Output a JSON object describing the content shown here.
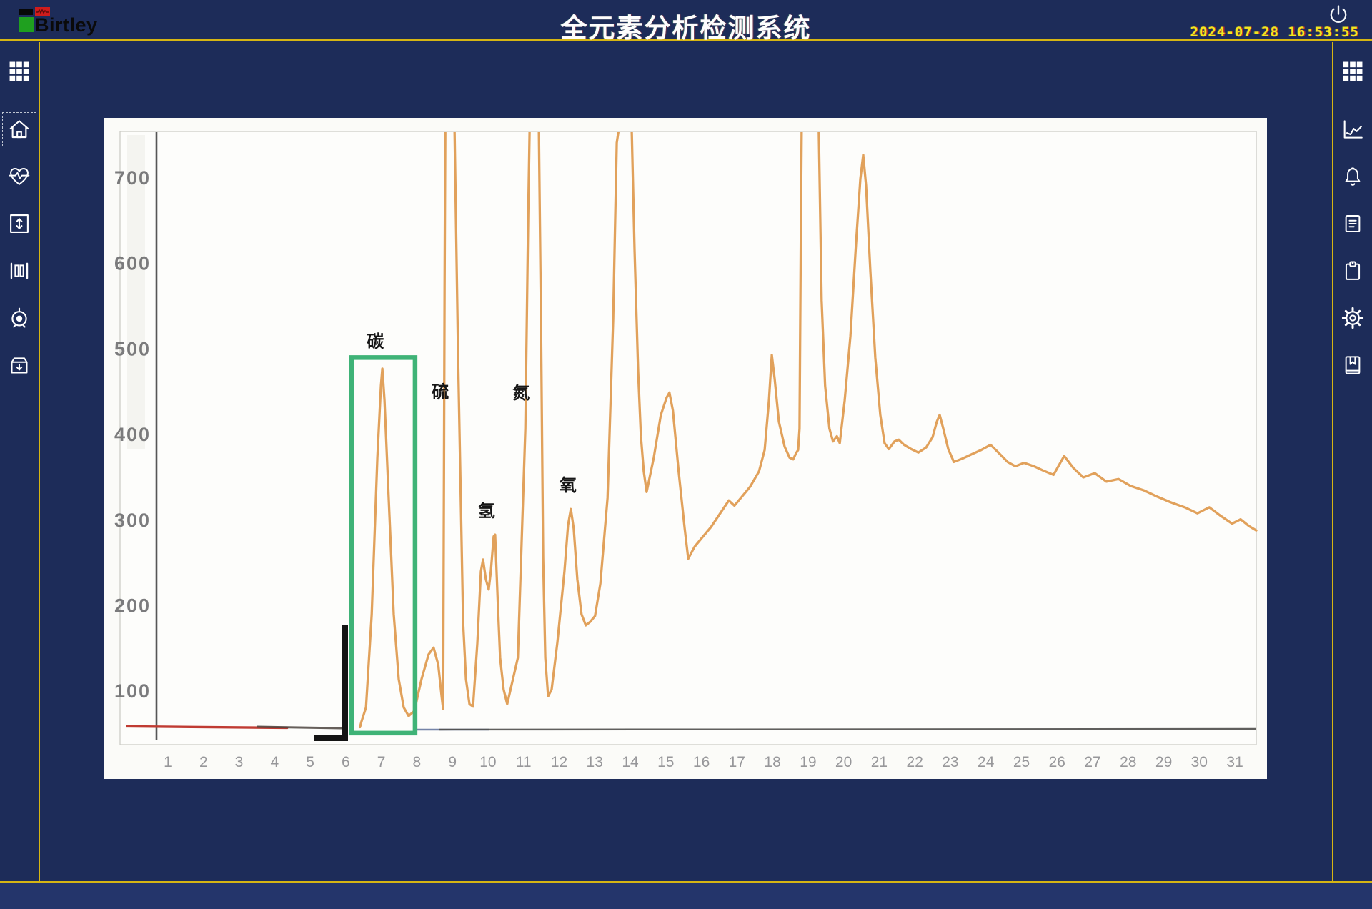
{
  "header": {
    "brand": "Birtley",
    "title": "全元素分析检测系统",
    "datetime": "2024-07-28  16:53:55"
  },
  "sidebar_left": {
    "items": [
      {
        "icon": "apps-grid-icon",
        "selected": false
      },
      {
        "icon": "home-icon",
        "selected": true
      },
      {
        "icon": "heartbeat-icon",
        "selected": false
      },
      {
        "icon": "vertical-range-icon",
        "selected": false
      },
      {
        "icon": "columns-icon",
        "selected": false
      },
      {
        "icon": "target-icon",
        "selected": false
      },
      {
        "icon": "archive-in-icon",
        "selected": false
      }
    ]
  },
  "sidebar_right": {
    "items": [
      {
        "icon": "apps-grid-icon"
      },
      {
        "icon": "trend-chart-icon"
      },
      {
        "icon": "bell-icon"
      },
      {
        "icon": "report-document-icon"
      },
      {
        "icon": "clipboard-icon"
      },
      {
        "icon": "gear-icon"
      },
      {
        "icon": "logbook-icon"
      }
    ]
  },
  "chart_data": {
    "type": "line",
    "title": "",
    "xlabel": "",
    "ylabel": "",
    "grid": false,
    "legend": false,
    "x_ticks": [
      1,
      2,
      3,
      4,
      5,
      6,
      7,
      8,
      9,
      10,
      11,
      12,
      13,
      14,
      15,
      16,
      17,
      18,
      19,
      20,
      21,
      22,
      23,
      24,
      25,
      26,
      27,
      28,
      29,
      30,
      31
    ],
    "y_ticks": [
      700,
      600,
      500,
      400,
      300,
      200,
      100
    ],
    "ylim": [
      0,
      760
    ],
    "series_color": "#e1a15b",
    "baseline": {
      "color": "#c03b32",
      "from_x": -0.15,
      "to_x": 4.35,
      "value": 58
    },
    "highlight_box": {
      "color": "#3fb377",
      "x_from": 6.16,
      "x_to": 7.95,
      "v_top": 490,
      "v_bottom": 51
    },
    "peak_labels": [
      {
        "element": "carbon",
        "label": "碳",
        "label_pos": [
          6.83,
          502
        ],
        "peak_x": 7.0,
        "peak_value": 478
      },
      {
        "element": "sulfur",
        "label": "硫",
        "label_pos": [
          8.66,
          443
        ],
        "peak_x": 8.9,
        "peak_value": 760
      },
      {
        "element": "hydrogen",
        "label": "氢",
        "label_pos": [
          9.96,
          304
        ],
        "peak_x": 10.2,
        "peak_value": 283
      },
      {
        "element": "nitrogen",
        "label": "氮",
        "label_pos": [
          10.93,
          442
        ],
        "peak_x": 11.3,
        "peak_value": 760
      },
      {
        "element": "oxygen",
        "label": "氧",
        "label_pos": [
          12.25,
          334
        ],
        "peak_x": 12.3,
        "peak_value": 313
      }
    ],
    "trace": [
      [
        6.4,
        58
      ],
      [
        6.44,
        64
      ],
      [
        6.57,
        81
      ],
      [
        6.73,
        190
      ],
      [
        6.89,
        373
      ],
      [
        6.99,
        457
      ],
      [
        7.03,
        477
      ],
      [
        7.09,
        440
      ],
      [
        7.21,
        323
      ],
      [
        7.35,
        190
      ],
      [
        7.49,
        114
      ],
      [
        7.63,
        81
      ],
      [
        7.77,
        71
      ],
      [
        7.93,
        77
      ],
      [
        8.13,
        114
      ],
      [
        8.33,
        143
      ],
      [
        8.47,
        151
      ],
      [
        8.6,
        131
      ],
      [
        8.7,
        93
      ],
      [
        8.74,
        79
      ],
      [
        8.78,
        574
      ],
      [
        8.8,
        758
      ],
      [
        9.06,
        758
      ],
      [
        9.16,
        490
      ],
      [
        9.3,
        181
      ],
      [
        9.38,
        114
      ],
      [
        9.48,
        85
      ],
      [
        9.58,
        82
      ],
      [
        9.7,
        156
      ],
      [
        9.8,
        240
      ],
      [
        9.86,
        254
      ],
      [
        9.94,
        231
      ],
      [
        10.02,
        219
      ],
      [
        10.08,
        240
      ],
      [
        10.16,
        281
      ],
      [
        10.2,
        283
      ],
      [
        10.28,
        198
      ],
      [
        10.34,
        139
      ],
      [
        10.44,
        102
      ],
      [
        10.54,
        85
      ],
      [
        10.84,
        139
      ],
      [
        11.05,
        407
      ],
      [
        11.13,
        657
      ],
      [
        11.17,
        758
      ],
      [
        11.43,
        758
      ],
      [
        11.49,
        532
      ],
      [
        11.55,
        256
      ],
      [
        11.61,
        139
      ],
      [
        11.69,
        94
      ],
      [
        11.79,
        102
      ],
      [
        11.95,
        157
      ],
      [
        12.15,
        240
      ],
      [
        12.25,
        294
      ],
      [
        12.33,
        313
      ],
      [
        12.41,
        290
      ],
      [
        12.51,
        231
      ],
      [
        12.63,
        190
      ],
      [
        12.75,
        177
      ],
      [
        12.87,
        181
      ],
      [
        13.01,
        188
      ],
      [
        13.16,
        226
      ],
      [
        13.36,
        326
      ],
      [
        13.52,
        535
      ],
      [
        13.62,
        741
      ],
      [
        13.68,
        758
      ],
      [
        14.04,
        758
      ],
      [
        14.12,
        616
      ],
      [
        14.22,
        474
      ],
      [
        14.3,
        398
      ],
      [
        14.38,
        357
      ],
      [
        14.46,
        333
      ],
      [
        14.66,
        373
      ],
      [
        14.86,
        423
      ],
      [
        15.02,
        443
      ],
      [
        15.1,
        449
      ],
      [
        15.2,
        428
      ],
      [
        15.36,
        357
      ],
      [
        15.53,
        290
      ],
      [
        15.63,
        255
      ],
      [
        15.81,
        269
      ],
      [
        16.03,
        280
      ],
      [
        16.27,
        292
      ],
      [
        16.53,
        308
      ],
      [
        16.77,
        323
      ],
      [
        16.93,
        317
      ],
      [
        17.13,
        327
      ],
      [
        17.37,
        339
      ],
      [
        17.62,
        357
      ],
      [
        17.78,
        382
      ],
      [
        17.9,
        440
      ],
      [
        17.98,
        493
      ],
      [
        18.06,
        465
      ],
      [
        18.18,
        415
      ],
      [
        18.34,
        386
      ],
      [
        18.48,
        373
      ],
      [
        18.58,
        371
      ],
      [
        18.66,
        378
      ],
      [
        18.72,
        382
      ],
      [
        18.76,
        407
      ],
      [
        18.8,
        657
      ],
      [
        18.82,
        758
      ],
      [
        19.3,
        758
      ],
      [
        19.38,
        557
      ],
      [
        19.48,
        457
      ],
      [
        19.6,
        407
      ],
      [
        19.7,
        392
      ],
      [
        19.81,
        398
      ],
      [
        19.89,
        390
      ],
      [
        20.03,
        440
      ],
      [
        20.19,
        515
      ],
      [
        20.35,
        624
      ],
      [
        20.47,
        699
      ],
      [
        20.55,
        727
      ],
      [
        20.63,
        691
      ],
      [
        20.75,
        591
      ],
      [
        20.89,
        490
      ],
      [
        21.03,
        423
      ],
      [
        21.15,
        390
      ],
      [
        21.27,
        383
      ],
      [
        21.43,
        392
      ],
      [
        21.55,
        394
      ],
      [
        21.7,
        388
      ],
      [
        21.9,
        383
      ],
      [
        22.1,
        379
      ],
      [
        22.32,
        385
      ],
      [
        22.5,
        397
      ],
      [
        22.62,
        415
      ],
      [
        22.7,
        423
      ],
      [
        22.8,
        407
      ],
      [
        22.94,
        383
      ],
      [
        23.1,
        368
      ],
      [
        23.34,
        372
      ],
      [
        23.6,
        377
      ],
      [
        23.87,
        382
      ],
      [
        24.13,
        388
      ],
      [
        24.35,
        379
      ],
      [
        24.61,
        368
      ],
      [
        24.83,
        363
      ],
      [
        25.07,
        367
      ],
      [
        25.35,
        363
      ],
      [
        25.61,
        358
      ],
      [
        25.9,
        353
      ],
      [
        26.2,
        375
      ],
      [
        26.46,
        361
      ],
      [
        26.74,
        350
      ],
      [
        27.06,
        355
      ],
      [
        27.39,
        345
      ],
      [
        27.73,
        348
      ],
      [
        28.07,
        340
      ],
      [
        28.43,
        335
      ],
      [
        28.79,
        328
      ],
      [
        29.19,
        321
      ],
      [
        29.59,
        315
      ],
      [
        29.95,
        308
      ],
      [
        30.28,
        315
      ],
      [
        30.6,
        305
      ],
      [
        30.92,
        296
      ],
      [
        31.16,
        301
      ],
      [
        31.4,
        293
      ],
      [
        31.6,
        288
      ]
    ]
  }
}
